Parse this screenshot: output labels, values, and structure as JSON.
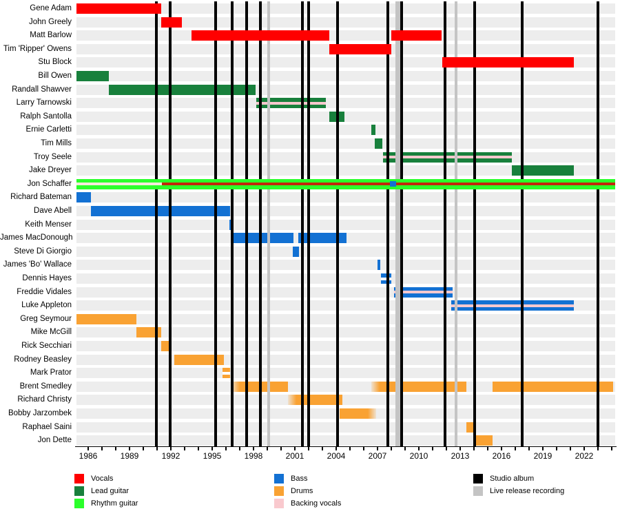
{
  "chart_data": {
    "type": "gantt-timeline",
    "description": "Band members timeline: members vs years, colored bars by instrument role, vertical lines for album releases",
    "x_axis": {
      "start_year": 1985.15,
      "end_year": 2024.25,
      "tick_interval_years": 1,
      "labels": [
        1986,
        1989,
        1992,
        1995,
        1998,
        2001,
        2004,
        2007,
        2010,
        2013,
        2016,
        2019,
        2022
      ]
    },
    "colors": {
      "vocals": "#FF0000",
      "lead": "#18803C",
      "rhythm": "#2BFF2B",
      "bass": "#1371D3",
      "drums": "#F9A233",
      "backing": "#F9C9CE",
      "backing_light": "#FAE8DC",
      "vocals_dark": "#C1270B",
      "white": "#FFFFFF",
      "studio_album": "#000000",
      "live_release": "#C4C4C4"
    },
    "members": [
      {
        "name": "Gene Adam",
        "bars": [
          {
            "role": "vocals",
            "start": 1985.15,
            "end": 1991.3
          }
        ]
      },
      {
        "name": "John Greely",
        "bars": [
          {
            "role": "vocals",
            "start": 1991.3,
            "end": 1992.8
          }
        ]
      },
      {
        "name": "Matt Barlow",
        "bars": [
          {
            "role": "vocals",
            "start": 1993.5,
            "end": 2003.5
          },
          {
            "role": "vocals",
            "start": 2008.0,
            "end": 2011.65
          }
        ]
      },
      {
        "name": "Tim 'Ripper' Owens",
        "bars": [
          {
            "role": "vocals",
            "start": 2003.5,
            "end": 2008.0
          }
        ]
      },
      {
        "name": "Stu Block",
        "bars": [
          {
            "role": "vocals",
            "start": 2011.7,
            "end": 2021.25
          }
        ]
      },
      {
        "name": "Bill Owen",
        "bars": [
          {
            "role": "lead",
            "start": 1985.15,
            "end": 1987.5
          }
        ]
      },
      {
        "name": "Randall Shawver",
        "bars": [
          {
            "role": "lead",
            "start": 1987.5,
            "end": 1998.15
          }
        ]
      },
      {
        "name": "Larry Tarnowski",
        "bars": [
          {
            "role": "lead",
            "start": 1998.2,
            "end": 2003.25,
            "stripe": "backing"
          }
        ]
      },
      {
        "name": "Ralph Santolla",
        "bars": [
          {
            "role": "lead",
            "start": 2003.5,
            "end": 2004.6
          }
        ]
      },
      {
        "name": "Ernie Carletti",
        "bars": [
          {
            "role": "lead",
            "start": 2006.55,
            "end": 2006.85
          }
        ]
      },
      {
        "name": "Tim Mills",
        "bars": [
          {
            "role": "lead",
            "start": 2006.8,
            "end": 2007.35
          }
        ]
      },
      {
        "name": "Troy Seele",
        "bars": [
          {
            "role": "lead",
            "start": 2007.4,
            "end": 2016.75,
            "stripe": "backing"
          }
        ]
      },
      {
        "name": "Jake Dreyer",
        "bars": [
          {
            "role": "lead",
            "start": 2016.75,
            "end": 2021.25
          }
        ]
      },
      {
        "name": "Jon Schaffer",
        "bars": [
          {
            "role": "rhythm",
            "start": 1985.15,
            "end": 2024.25,
            "layer": "over",
            "stripes": [
              {
                "color": "backing_light",
                "start": 1985.15,
                "end": 1991.35
              },
              {
                "color": "vocals_dark",
                "start": 1991.35,
                "end": 2024.25
              },
              {
                "color": "bass",
                "start": 2007.9,
                "end": 2008.35,
                "tall": true
              }
            ]
          }
        ]
      },
      {
        "name": "Richard Bateman",
        "bars": [
          {
            "role": "bass",
            "start": 1985.15,
            "end": 1986.2
          }
        ]
      },
      {
        "name": "Dave Abell",
        "bars": [
          {
            "role": "bass",
            "start": 1986.2,
            "end": 1996.3
          }
        ]
      },
      {
        "name": "Keith Menser",
        "bars": [
          {
            "role": "bass",
            "start": 1996.25,
            "end": 1996.45
          }
        ]
      },
      {
        "name": "James MacDonough",
        "bars": [
          {
            "role": "bass",
            "start": 1996.4,
            "end": 2000.9
          },
          {
            "role": "bass",
            "start": 2001.25,
            "end": 2004.75
          }
        ]
      },
      {
        "name": "Steve Di Giorgio",
        "bars": [
          {
            "role": "bass",
            "start": 2000.85,
            "end": 2001.3
          }
        ]
      },
      {
        "name": "James 'Bo' Wallace",
        "bars": [
          {
            "role": "bass",
            "start": 2007.0,
            "end": 2007.2
          }
        ]
      },
      {
        "name": "Dennis Hayes",
        "bars": [
          {
            "role": "bass",
            "start": 2007.25,
            "end": 2008.0,
            "stripe": "white"
          }
        ]
      },
      {
        "name": "Freddie Vidales",
        "bars": [
          {
            "role": "bass",
            "start": 2008.2,
            "end": 2012.45,
            "stripe": "backing"
          }
        ]
      },
      {
        "name": "Luke Appleton",
        "bars": [
          {
            "role": "bass",
            "start": 2012.35,
            "end": 2021.25,
            "stripe": "backing"
          }
        ]
      },
      {
        "name": "Greg Seymour",
        "bars": [
          {
            "role": "drums",
            "start": 1985.15,
            "end": 1989.5
          }
        ]
      },
      {
        "name": "Mike McGill",
        "bars": [
          {
            "role": "drums",
            "start": 1989.5,
            "end": 1991.3
          }
        ]
      },
      {
        "name": "Rick Secchiari",
        "bars": [
          {
            "role": "drums",
            "start": 1991.3,
            "end": 1991.9
          }
        ]
      },
      {
        "name": "Rodney Beasley",
        "bars": [
          {
            "role": "drums",
            "start": 1992.25,
            "end": 1995.85
          }
        ]
      },
      {
        "name": "Mark Prator",
        "bars": [
          {
            "role": "drums",
            "start": 1995.75,
            "end": 1996.3,
            "stripe": "white"
          }
        ]
      },
      {
        "name": "Brent Smedley",
        "bars": [
          {
            "role": "drums",
            "start": 1996.4,
            "end": 2000.5,
            "fade": "left"
          },
          {
            "role": "drums",
            "start": 2006.55,
            "end": 2013.45,
            "fade": "left"
          },
          {
            "role": "drums",
            "start": 2015.35,
            "end": 2024.1
          }
        ]
      },
      {
        "name": "Richard Christy",
        "bars": [
          {
            "role": "drums",
            "start": 2000.5,
            "end": 2004.45,
            "fade": "left"
          }
        ]
      },
      {
        "name": "Bobby Jarzombek",
        "bars": [
          {
            "role": "drums",
            "start": 2004.25,
            "end": 2006.9,
            "fade": "right"
          }
        ]
      },
      {
        "name": "Raphael Saini",
        "bars": [
          {
            "role": "drums",
            "start": 2013.45,
            "end": 2013.95
          }
        ]
      },
      {
        "name": "Jon Dette",
        "bars": [
          {
            "role": "drums",
            "start": 2013.95,
            "end": 2015.35
          }
        ]
      }
    ],
    "studio_album_lines": [
      {
        "year": 1990.95
      },
      {
        "year": 1991.95
      },
      {
        "year": 1995.25
      },
      {
        "year": 1996.45
      },
      {
        "year": 1997.5
      },
      {
        "year": 1998.5
      },
      {
        "year": 2001.55
      },
      {
        "year": 2002.0
      },
      {
        "year": 2004.1
      },
      {
        "year": 2007.75
      },
      {
        "year": 2008.75
      },
      {
        "year": 2011.9
      },
      {
        "year": 2014.05
      },
      {
        "year": 2017.5
      },
      {
        "year": 2023.0
      }
    ],
    "live_release_lines": [
      {
        "year": 1999.1,
        "wide": false
      },
      {
        "year": 2008.45,
        "wide": true
      },
      {
        "year": 2012.7,
        "wide": false
      }
    ],
    "legend": {
      "columns": [
        {
          "items": [
            {
              "label": "Vocals",
              "color": "vocals"
            },
            {
              "label": "Lead guitar",
              "color": "lead"
            },
            {
              "label": "Rhythm guitar",
              "color": "rhythm"
            }
          ]
        },
        {
          "items": [
            {
              "label": "Bass",
              "color": "bass"
            },
            {
              "label": "Drums",
              "color": "drums"
            },
            {
              "label": "Backing vocals",
              "color": "backing"
            }
          ]
        },
        {
          "items": [
            {
              "label": "Studio album",
              "color": "studio_album"
            },
            {
              "label": "Live release recording",
              "color": "live_release"
            }
          ]
        }
      ]
    }
  }
}
